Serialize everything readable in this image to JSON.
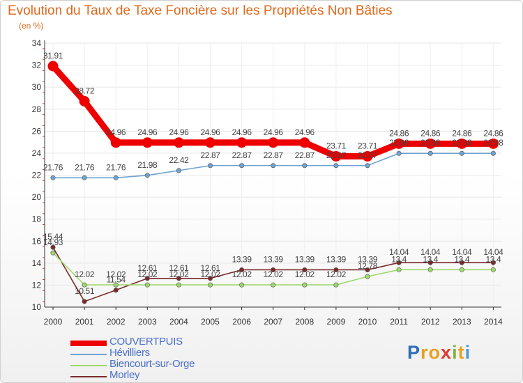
{
  "header": {
    "title": "Evolution du Taux de Taxe Foncière sur les Propriétés Non Bâties",
    "unit": "(en %)"
  },
  "logo": {
    "chars": [
      "P",
      "r",
      "o",
      "x",
      "i",
      "t",
      "i"
    ],
    "colors": [
      "#2f6db8",
      "#e8a020",
      "#e8a020",
      "#e03a2f",
      "#7fb23a",
      "#e8a020",
      "#4a9ad8"
    ]
  },
  "colors": {
    "title": "#e0681a",
    "grid": "#e6e6e6",
    "axis": "#333333",
    "legend_text": "#4a6fc7"
  },
  "chart_data": {
    "type": "line",
    "title": "Evolution du Taux de Taxe Foncière sur les Propriétés Non Bâties",
    "ylabel": "(en %)",
    "xlabel": "",
    "ylim": [
      10,
      34
    ],
    "yticks": [
      10,
      12,
      14,
      16,
      18,
      20,
      22,
      24,
      26,
      28,
      30,
      32,
      34
    ],
    "categories": [
      "2000",
      "2001",
      "2002",
      "2003",
      "2004",
      "2005",
      "2006",
      "2007",
      "2008",
      "2009",
      "2010",
      "2011",
      "2012",
      "2013",
      "2014"
    ],
    "legend_position": "bottom-left",
    "series": [
      {
        "name": "COUVERTPUIS",
        "color": "#ee0000",
        "values": [
          31.91,
          28.72,
          24.96,
          24.96,
          24.96,
          24.96,
          24.96,
          24.96,
          24.96,
          23.71,
          23.71,
          24.86,
          24.86,
          24.86,
          24.86
        ],
        "labels": [
          "31.91",
          "28.72",
          "24.96",
          "24.96",
          "24.96",
          "24.96",
          "24.96",
          "24.96",
          "24.96",
          "23.71",
          "23.71",
          "24.86",
          "24.86",
          "24.86",
          "24.86"
        ]
      },
      {
        "name": "Hévilliers",
        "color": "#6fa3cf",
        "values": [
          21.76,
          21.76,
          21.76,
          21.98,
          22.42,
          22.87,
          22.87,
          22.87,
          22.87,
          22.87,
          22.87,
          23.98,
          23.98,
          23.98,
          23.98
        ],
        "labels": [
          "21.76",
          "21.76",
          "21.76",
          "21.98",
          "22.42",
          "22.87",
          "22.87",
          "22.87",
          "22.87",
          "22.87",
          "22.87",
          "23.98",
          "23.98",
          "23.98",
          "23.98"
        ]
      },
      {
        "name": "Biencourt-sur-Orge",
        "color": "#9ed86b",
        "values": [
          14.93,
          12.02,
          12.02,
          12.02,
          12.02,
          12.02,
          12.02,
          12.02,
          12.02,
          12.02,
          12.78,
          13.4,
          13.4,
          13.4,
          13.4
        ],
        "labels": [
          "14.93",
          "12.02",
          "12.02",
          "12.02",
          "12.02",
          "12.02",
          "12.02",
          "12.02",
          "12.02",
          "12.02",
          "12.78",
          "13.4",
          "13.4",
          "13.4",
          "13.4"
        ]
      },
      {
        "name": "Morley",
        "color": "#7a2a2a",
        "values": [
          15.44,
          10.51,
          11.54,
          12.61,
          12.61,
          12.61,
          13.39,
          13.39,
          13.39,
          13.39,
          13.39,
          14.04,
          14.04,
          14.04,
          14.04
        ],
        "labels": [
          "15.44",
          "10.51",
          "11.54",
          "12.61",
          "12.61",
          "12.61",
          "13.39",
          "13.39",
          "13.39",
          "13.39",
          "13.39",
          "14.04",
          "14.04",
          "14.04",
          "14.04"
        ]
      }
    ]
  }
}
